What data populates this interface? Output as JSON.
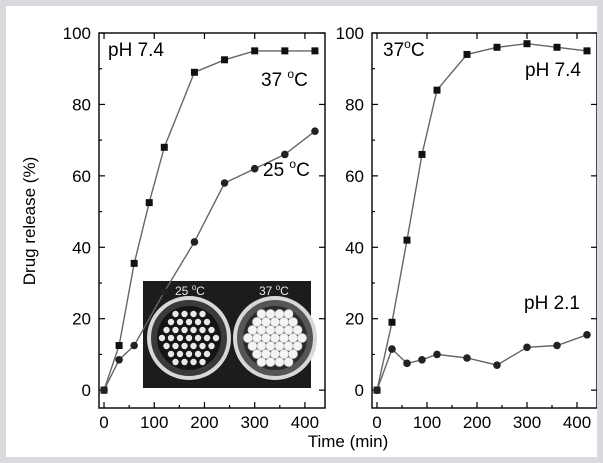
{
  "chart_data": [
    {
      "type": "line",
      "panel": "left",
      "annotation_top_left": "pH 7.4",
      "xlabel": "Time (min)",
      "ylabel": "Drug release (%)",
      "xlim": [
        -10,
        440
      ],
      "ylim": [
        -5,
        100
      ],
      "xticks": [
        0,
        100,
        200,
        300,
        400
      ],
      "yticks": [
        0,
        20,
        40,
        60,
        80,
        100
      ],
      "series": [
        {
          "label": "37 °C",
          "label_main": "37 ",
          "label_deg": "o",
          "label_unit": "C",
          "marker": "square",
          "x": [
            0,
            30,
            60,
            90,
            120,
            180,
            240,
            300,
            360,
            420
          ],
          "y": [
            0,
            12.5,
            35.5,
            52.5,
            68,
            89,
            92.5,
            95,
            95,
            95
          ]
        },
        {
          "label": "25 °C",
          "label_main": "25 ",
          "label_deg": "o",
          "label_unit": "C",
          "marker": "circle",
          "x": [
            0,
            30,
            60,
            120,
            180,
            240,
            300,
            360,
            420
          ],
          "y": [
            0,
            8.5,
            12.5,
            27.5,
            41.5,
            58,
            62,
            66,
            72.5
          ]
        }
      ],
      "inset": {
        "label_left": "25 °C",
        "label_left_main": "25 ",
        "label_left_deg": "o",
        "label_left_unit": "C",
        "label_right": "37 °C",
        "label_right_main": "37 ",
        "label_right_deg": "o",
        "label_right_unit": "C"
      }
    },
    {
      "type": "line",
      "panel": "right",
      "annotation_top_left": "37°C",
      "annotation_top_left_main": "37",
      "annotation_top_left_deg": "o",
      "annotation_top_left_unit": "C",
      "xlabel": "Time (min)",
      "xlim": [
        -10,
        440
      ],
      "ylim": [
        -5,
        100
      ],
      "xticks": [
        0,
        100,
        200,
        300,
        400
      ],
      "yticks": [
        0,
        20,
        40,
        60,
        80,
        100
      ],
      "series": [
        {
          "label": "pH 7.4",
          "marker": "square",
          "x": [
            0,
            30,
            60,
            90,
            120,
            180,
            240,
            300,
            360,
            420
          ],
          "y": [
            0,
            19,
            42,
            66,
            84,
            94,
            96,
            97,
            96,
            95
          ]
        },
        {
          "label": "pH 2.1",
          "marker": "circle",
          "x": [
            0,
            30,
            60,
            90,
            120,
            180,
            240,
            300,
            360,
            420
          ],
          "y": [
            0,
            11.5,
            7.5,
            8.5,
            10,
            9,
            7,
            12,
            12.5,
            15.5
          ]
        }
      ]
    }
  ]
}
